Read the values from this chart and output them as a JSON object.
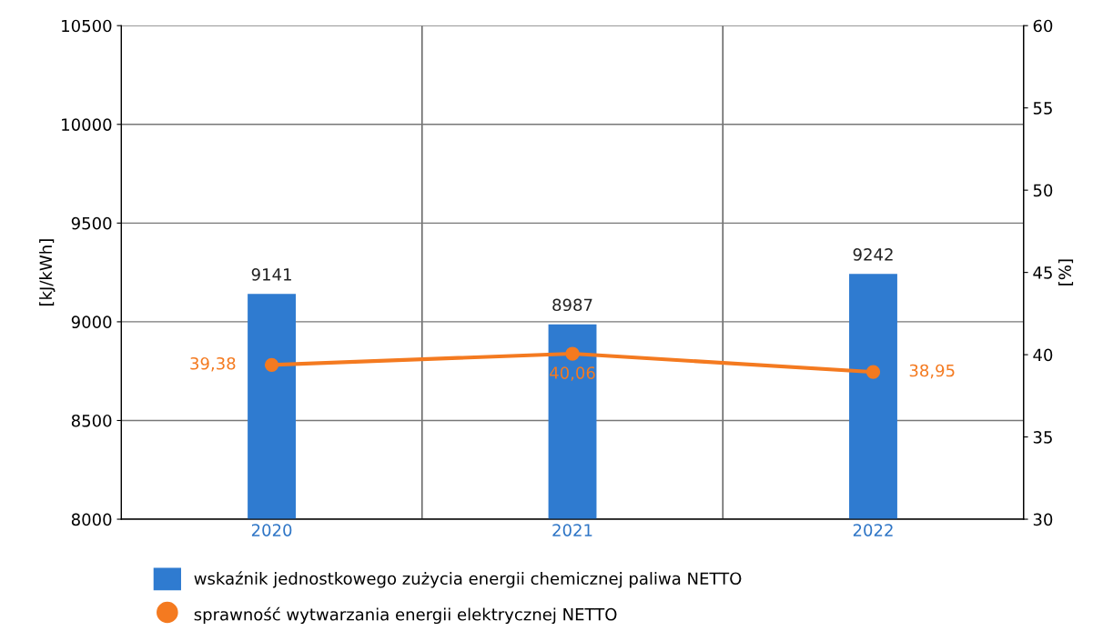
{
  "chart_data": {
    "type": "bar",
    "categories": [
      "2020",
      "2021",
      "2022"
    ],
    "series": [
      {
        "name": "wskaźnik jednostkowego zużycia energii chemicznej paliwa NETTO",
        "color": "#2f7bd0",
        "values": [
          9141,
          8987,
          9242
        ]
      },
      {
        "name": "sprawność wytwarzania energii elektrycznej NETTO",
        "type": "line",
        "axis": "y2",
        "color": "#f47a20",
        "values": [
          39.38,
          40.06,
          38.95
        ],
        "value_labels": [
          "39,38",
          "40,06",
          "38,95"
        ]
      }
    ],
    "ylabel": "[kJ/kWh]",
    "y2label": "[%]",
    "ylim": [
      8000,
      10500
    ],
    "yticks": [
      8000,
      8500,
      9000,
      9500,
      10000,
      10500
    ],
    "y2lim": [
      30,
      60
    ],
    "y2ticks": [
      30,
      35,
      40,
      45,
      50,
      55,
      60
    ],
    "data_labels": true,
    "grid": true,
    "legend": "bottom",
    "marker": "circle",
    "line_style": "solid"
  }
}
